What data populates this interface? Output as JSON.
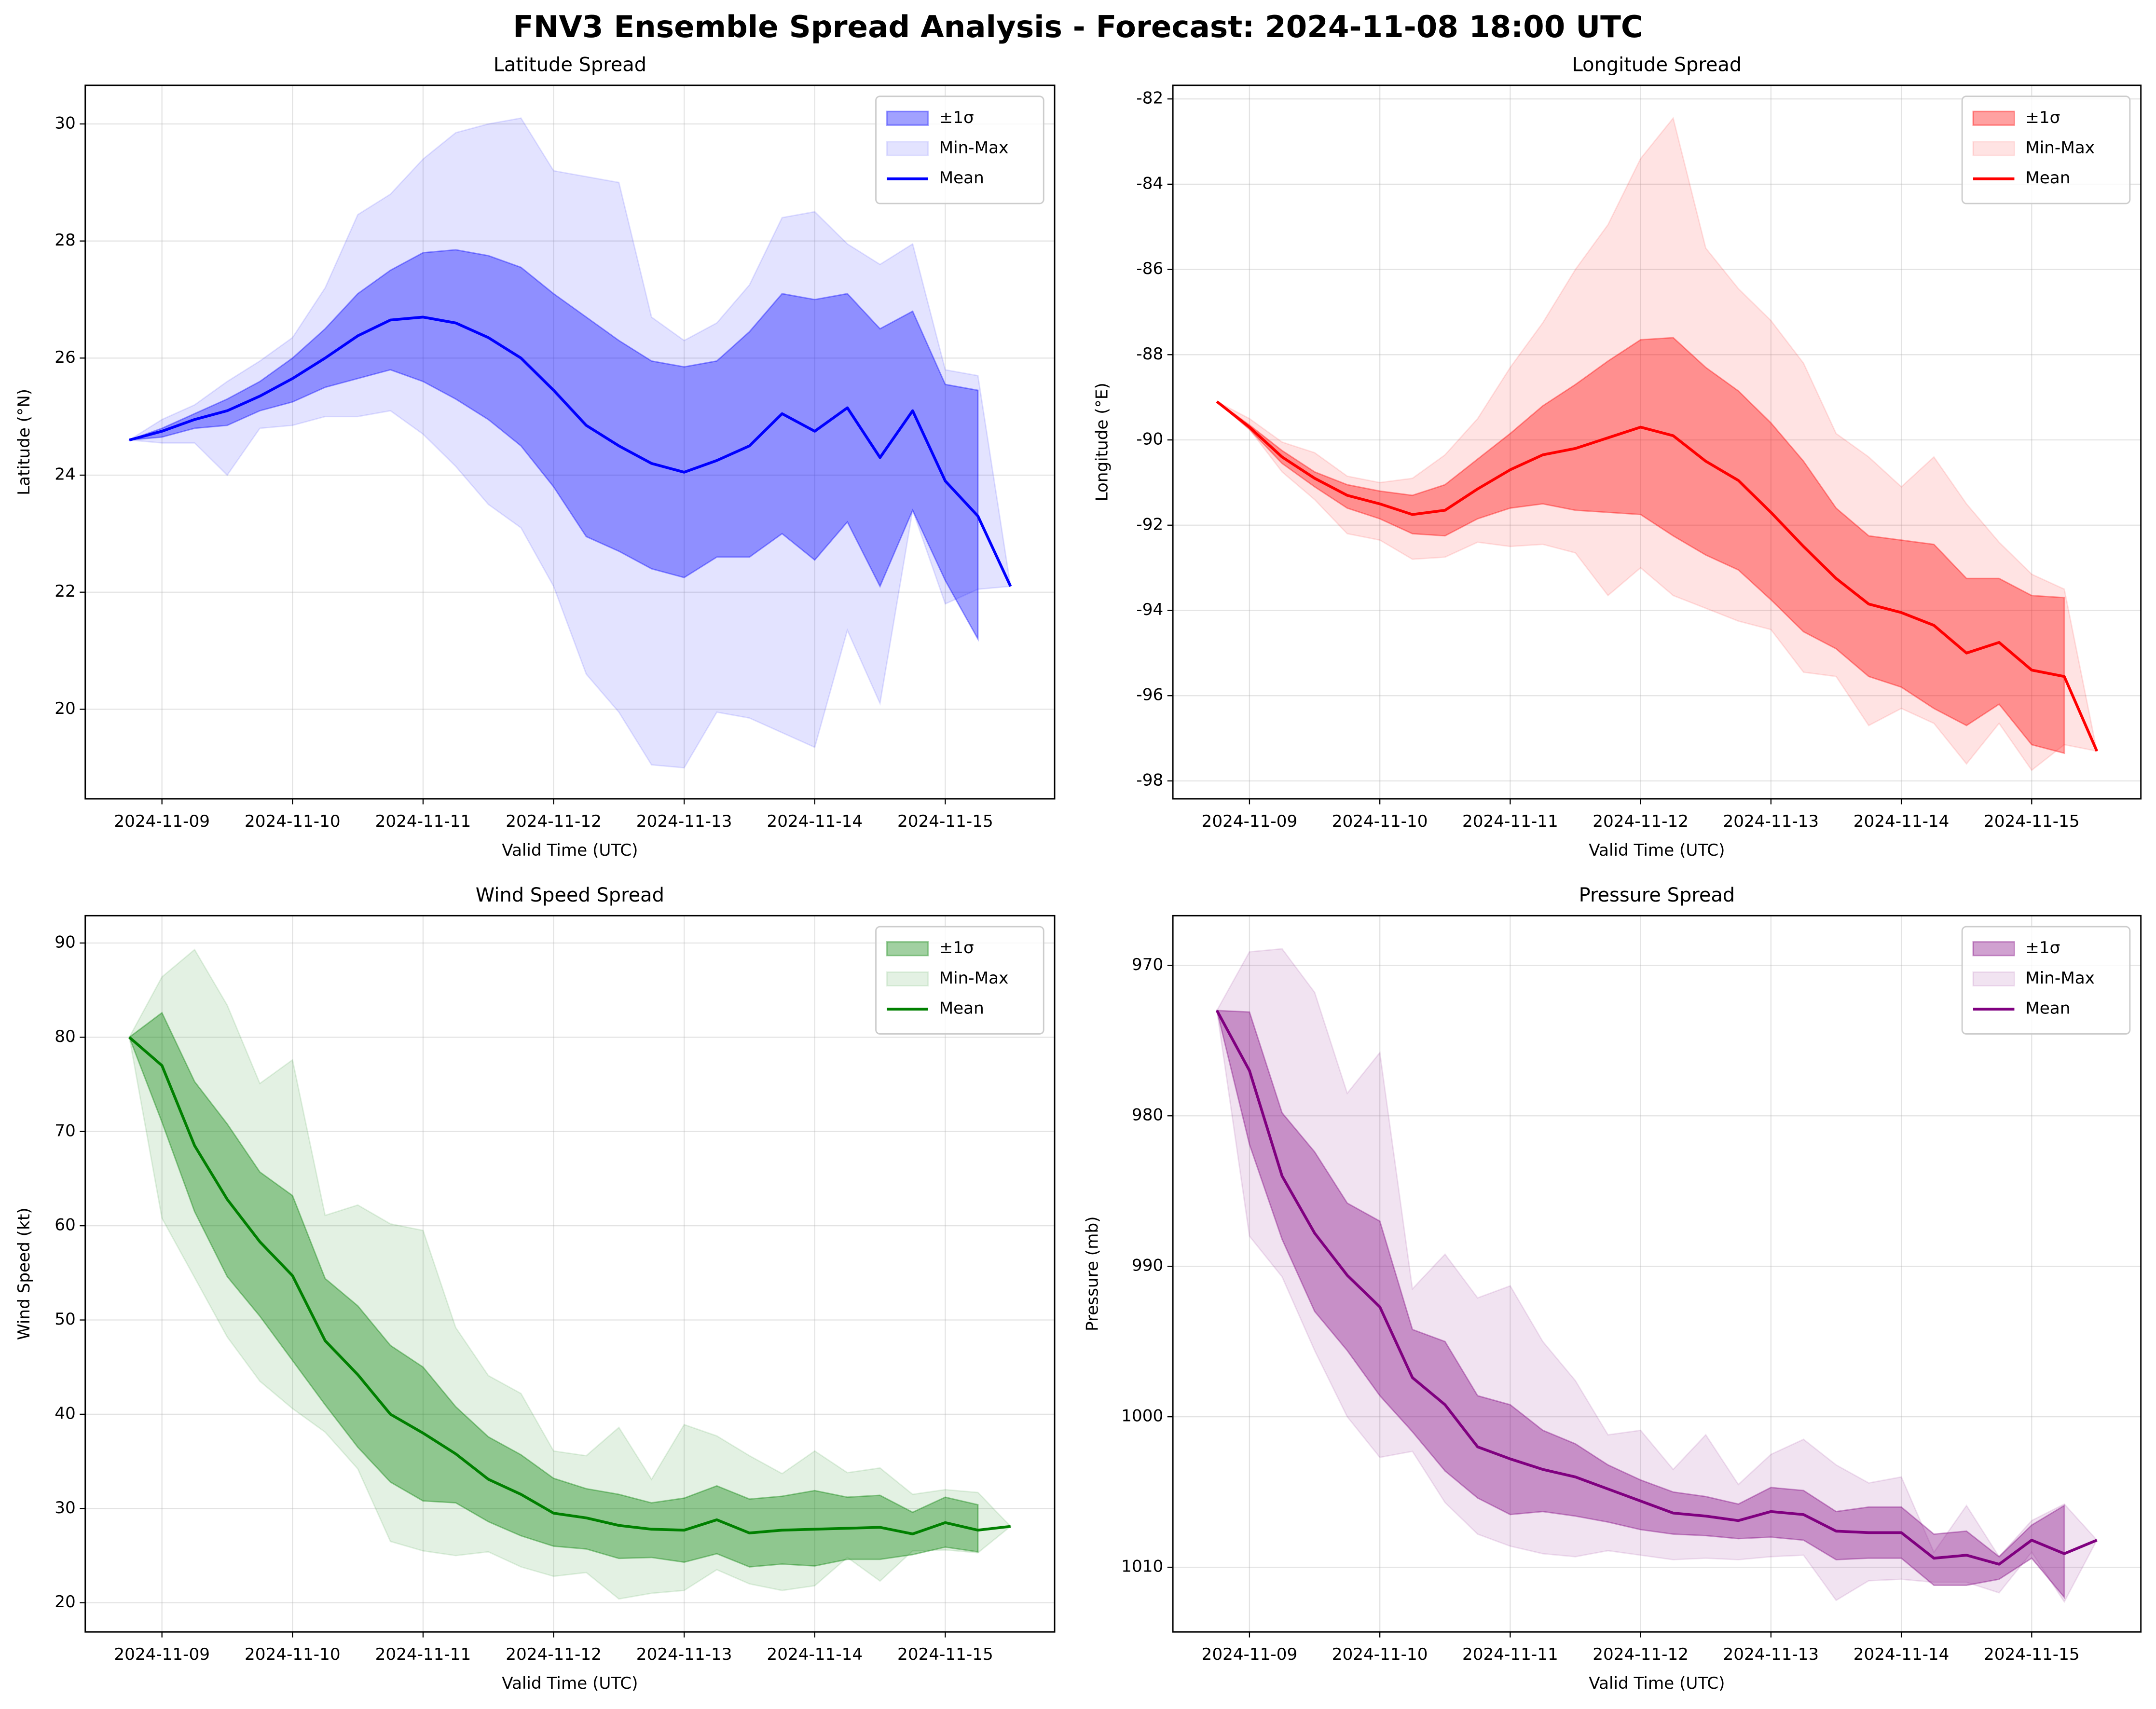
{
  "title": "FNV3 Ensemble Spread Analysis - Forecast: 2024-11-08 18:00 UTC",
  "chart_data": [
    {
      "type": "line",
      "title": "Latitude Spread",
      "xlabel": "Valid Time (UTC)",
      "ylabel": "Latitude (°N)",
      "x": [
        "2024-11-08T18:00",
        "2024-11-09T00:00",
        "2024-11-09T06:00",
        "2024-11-09T12:00",
        "2024-11-09T18:00",
        "2024-11-10T00:00",
        "2024-11-10T06:00",
        "2024-11-10T12:00",
        "2024-11-10T18:00",
        "2024-11-11T00:00",
        "2024-11-11T06:00",
        "2024-11-11T12:00",
        "2024-11-11T18:00",
        "2024-11-12T00:00",
        "2024-11-12T06:00",
        "2024-11-12T12:00",
        "2024-11-12T18:00",
        "2024-11-13T00:00",
        "2024-11-13T06:00",
        "2024-11-13T12:00",
        "2024-11-13T18:00",
        "2024-11-14T00:00",
        "2024-11-14T06:00",
        "2024-11-14T12:00",
        "2024-11-14T18:00",
        "2024-11-15T00:00",
        "2024-11-15T06:00",
        "2024-11-15T12:00"
      ],
      "series": [
        {
          "name": "±1σ",
          "color": "#0000ff5e",
          "lower": [
            24.6,
            24.65,
            24.8,
            24.85,
            25.1,
            25.25,
            25.5,
            25.65,
            25.8,
            25.6,
            25.3,
            24.95,
            24.5,
            23.8,
            22.95,
            22.7,
            22.4,
            22.25,
            22.6,
            22.6,
            23.0,
            22.55,
            23.2,
            22.1,
            23.4,
            22.2,
            21.2,
            null
          ],
          "upper": [
            24.6,
            24.8,
            25.05,
            25.3,
            25.6,
            26.0,
            26.5,
            27.1,
            27.5,
            27.8,
            27.85,
            27.75,
            27.55,
            27.1,
            26.7,
            26.3,
            25.95,
            25.85,
            25.95,
            26.45,
            27.1,
            27.0,
            27.1,
            26.5,
            26.8,
            25.55,
            25.45,
            null
          ]
        },
        {
          "name": "Min-Max",
          "color": "#0000ff1c",
          "lower": [
            24.6,
            24.55,
            24.55,
            24.0,
            24.8,
            24.85,
            25.0,
            25.0,
            25.1,
            24.7,
            24.15,
            23.5,
            23.1,
            22.1,
            20.6,
            19.95,
            19.05,
            19.0,
            19.95,
            19.85,
            19.6,
            19.35,
            21.35,
            20.1,
            23.4,
            21.8,
            22.05,
            22.1
          ],
          "upper": [
            24.6,
            24.95,
            25.2,
            25.6,
            25.95,
            26.35,
            27.2,
            28.45,
            28.8,
            29.4,
            29.85,
            30.0,
            30.1,
            29.2,
            29.1,
            29.0,
            26.7,
            26.3,
            26.6,
            27.25,
            28.4,
            28.5,
            27.95,
            27.6,
            27.95,
            25.8,
            25.7,
            22.1
          ]
        },
        {
          "name": "Mean",
          "color": "#0000ff",
          "values": [
            24.6,
            24.75,
            24.95,
            25.1,
            25.35,
            25.65,
            26.0,
            26.38,
            26.65,
            26.7,
            26.6,
            26.35,
            26.0,
            25.45,
            24.85,
            24.5,
            24.2,
            24.05,
            24.25,
            24.5,
            25.05,
            24.75,
            25.15,
            24.3,
            25.1,
            23.9,
            23.3,
            22.1
          ]
        }
      ],
      "xlim": [
        "2024-11-08T09:54",
        "2024-11-15T20:06"
      ],
      "xticks": [
        {
          "value": "2024-11-09T00:00",
          "label": "2024-11-09"
        },
        {
          "value": "2024-11-10T00:00",
          "label": "2024-11-10"
        },
        {
          "value": "2024-11-11T00:00",
          "label": "2024-11-11"
        },
        {
          "value": "2024-11-12T00:00",
          "label": "2024-11-12"
        },
        {
          "value": "2024-11-13T00:00",
          "label": "2024-11-13"
        },
        {
          "value": "2024-11-14T00:00",
          "label": "2024-11-14"
        },
        {
          "value": "2024-11-15T00:00",
          "label": "2024-11-15"
        }
      ],
      "ylim": [
        18.47,
        30.66
      ],
      "yticks": [
        20,
        22,
        24,
        26,
        28,
        30
      ],
      "grid": true,
      "legend": "upper right"
    },
    {
      "type": "line",
      "title": "Longitude Spread",
      "xlabel": "Valid Time (UTC)",
      "ylabel": "Longitude (°E)",
      "x": [
        "2024-11-08T18:00",
        "2024-11-09T00:00",
        "2024-11-09T06:00",
        "2024-11-09T12:00",
        "2024-11-09T18:00",
        "2024-11-10T00:00",
        "2024-11-10T06:00",
        "2024-11-10T12:00",
        "2024-11-10T18:00",
        "2024-11-11T00:00",
        "2024-11-11T06:00",
        "2024-11-11T12:00",
        "2024-11-11T18:00",
        "2024-11-12T00:00",
        "2024-11-12T06:00",
        "2024-11-12T12:00",
        "2024-11-12T18:00",
        "2024-11-13T00:00",
        "2024-11-13T06:00",
        "2024-11-13T12:00",
        "2024-11-13T18:00",
        "2024-11-14T00:00",
        "2024-11-14T06:00",
        "2024-11-14T12:00",
        "2024-11-14T18:00",
        "2024-11-15T00:00",
        "2024-11-15T06:00",
        "2024-11-15T12:00"
      ],
      "series": [
        {
          "name": "±1σ",
          "color": "#ff00005e",
          "lower": [
            -89.1,
            -89.75,
            -90.55,
            -91.1,
            -91.6,
            -91.85,
            -92.2,
            -92.25,
            -91.85,
            -91.6,
            -91.5,
            -91.65,
            -91.7,
            -91.75,
            -92.25,
            -92.7,
            -93.05,
            -93.75,
            -94.5,
            -94.9,
            -95.55,
            -95.8,
            -96.3,
            -96.7,
            -96.2,
            -97.15,
            -97.35,
            null
          ],
          "upper": [
            -89.1,
            -89.65,
            -90.25,
            -90.75,
            -91.05,
            -91.2,
            -91.3,
            -91.05,
            -90.45,
            -89.85,
            -89.2,
            -88.7,
            -88.15,
            -87.65,
            -87.6,
            -88.3,
            -88.85,
            -89.6,
            -90.5,
            -91.6,
            -92.25,
            -92.35,
            -92.45,
            -93.25,
            -93.25,
            -93.65,
            -93.7,
            null
          ]
        },
        {
          "name": "Min-Max",
          "color": "#ff00001c",
          "lower": [
            -89.1,
            -89.75,
            -90.75,
            -91.4,
            -92.2,
            -92.35,
            -92.8,
            -92.75,
            -92.4,
            -92.5,
            -92.45,
            -92.65,
            -93.65,
            -93.0,
            -93.65,
            -93.95,
            -94.25,
            -94.45,
            -95.45,
            -95.55,
            -96.7,
            -96.3,
            -96.65,
            -97.6,
            -96.65,
            -97.75,
            -97.15,
            -97.3
          ],
          "upper": [
            -89.1,
            -89.5,
            -90.05,
            -90.3,
            -90.85,
            -91.0,
            -90.9,
            -90.35,
            -89.5,
            -88.3,
            -87.25,
            -86.0,
            -84.95,
            -83.4,
            -82.45,
            -85.5,
            -86.45,
            -87.2,
            -88.2,
            -89.85,
            -90.4,
            -91.1,
            -90.4,
            -91.5,
            -92.4,
            -93.15,
            -93.5,
            -97.3
          ]
        },
        {
          "name": "Mean",
          "color": "#ff0000",
          "values": [
            -89.1,
            -89.7,
            -90.4,
            -90.9,
            -91.3,
            -91.5,
            -91.75,
            -91.65,
            -91.15,
            -90.7,
            -90.35,
            -90.2,
            -89.95,
            -89.7,
            -89.9,
            -90.5,
            -90.95,
            -91.7,
            -92.5,
            -93.25,
            -93.85,
            -94.05,
            -94.35,
            -95.0,
            -94.75,
            -95.4,
            -95.55,
            -97.3
          ]
        }
      ],
      "xlim": [
        "2024-11-08T09:54",
        "2024-11-15T20:06"
      ],
      "xticks": [
        {
          "value": "2024-11-09T00:00",
          "label": "2024-11-09"
        },
        {
          "value": "2024-11-10T00:00",
          "label": "2024-11-10"
        },
        {
          "value": "2024-11-11T00:00",
          "label": "2024-11-11"
        },
        {
          "value": "2024-11-12T00:00",
          "label": "2024-11-12"
        },
        {
          "value": "2024-11-13T00:00",
          "label": "2024-11-13"
        },
        {
          "value": "2024-11-14T00:00",
          "label": "2024-11-14"
        },
        {
          "value": "2024-11-15T00:00",
          "label": "2024-11-15"
        }
      ],
      "ylim": [
        -98.42,
        -81.68
      ],
      "yticks": [
        -98,
        -96,
        -94,
        -92,
        -90,
        -88,
        -86,
        -84,
        -82
      ],
      "grid": true,
      "legend": "upper right"
    },
    {
      "type": "line",
      "title": "Wind Speed Spread",
      "xlabel": "Valid Time (UTC)",
      "ylabel": "Wind Speed (kt)",
      "x": [
        "2024-11-08T18:00",
        "2024-11-09T00:00",
        "2024-11-09T06:00",
        "2024-11-09T12:00",
        "2024-11-09T18:00",
        "2024-11-10T00:00",
        "2024-11-10T06:00",
        "2024-11-10T12:00",
        "2024-11-10T18:00",
        "2024-11-11T00:00",
        "2024-11-11T06:00",
        "2024-11-11T12:00",
        "2024-11-11T18:00",
        "2024-11-12T00:00",
        "2024-11-12T06:00",
        "2024-11-12T12:00",
        "2024-11-12T18:00",
        "2024-11-13T00:00",
        "2024-11-13T06:00",
        "2024-11-13T12:00",
        "2024-11-13T18:00",
        "2024-11-14T00:00",
        "2024-11-14T06:00",
        "2024-11-14T12:00",
        "2024-11-14T18:00",
        "2024-11-15T00:00",
        "2024-11-15T06:00",
        "2024-11-15T12:00"
      ],
      "series": [
        {
          "name": "±1σ",
          "color": "#0080005e",
          "lower": [
            80,
            71,
            61.5,
            54.6,
            50.4,
            45.7,
            41,
            36.5,
            32.8,
            30.8,
            30.6,
            28.6,
            27.1,
            26,
            25.7,
            24.7,
            24.8,
            24.3,
            25.2,
            23.8,
            24.1,
            23.9,
            24.6,
            24.6,
            25.1,
            25.9,
            25.4,
            null
          ],
          "upper": [
            80,
            82.6,
            75.3,
            70.8,
            65.7,
            63.2,
            54.4,
            51.5,
            47.3,
            45,
            40.8,
            37.6,
            35.7,
            33.2,
            32.1,
            31.5,
            30.6,
            31.1,
            32.4,
            31,
            31.3,
            31.9,
            31.2,
            31.4,
            29.6,
            31.2,
            30.4,
            null
          ]
        },
        {
          "name": "Min-Max",
          "color": "#0080001c",
          "lower": [
            80,
            60.8,
            54.5,
            48.2,
            43.5,
            40.6,
            38.1,
            34.2,
            26.5,
            25.5,
            25,
            25.4,
            23.8,
            22.8,
            23.2,
            20.4,
            21,
            21.3,
            23.5,
            22,
            21.3,
            21.8,
            24.8,
            22.3,
            25.5,
            25.6,
            25.3,
            28.1
          ],
          "upper": [
            80,
            86.4,
            89.3,
            83.4,
            75.1,
            77.6,
            61.1,
            62.2,
            60.2,
            59.5,
            49.2,
            44.1,
            42.2,
            36.1,
            35.6,
            38.6,
            33.1,
            38.9,
            37.7,
            35.6,
            33.7,
            36.1,
            33.8,
            34.3,
            31.5,
            32,
            31.7,
            28.1
          ]
        },
        {
          "name": "Mean",
          "color": "#008000",
          "values": [
            80,
            77,
            68.5,
            62.8,
            58.3,
            54.7,
            47.8,
            44.2,
            40,
            38,
            35.8,
            33.1,
            31.5,
            29.5,
            29,
            28.2,
            27.8,
            27.7,
            28.8,
            27.4,
            27.7,
            27.8,
            27.9,
            28,
            27.3,
            28.5,
            27.7,
            28.1
          ]
        }
      ],
      "xlim": [
        "2024-11-08T09:54",
        "2024-11-15T20:06"
      ],
      "xticks": [
        {
          "value": "2024-11-09T00:00",
          "label": "2024-11-09"
        },
        {
          "value": "2024-11-10T00:00",
          "label": "2024-11-10"
        },
        {
          "value": "2024-11-11T00:00",
          "label": "2024-11-11"
        },
        {
          "value": "2024-11-12T00:00",
          "label": "2024-11-12"
        },
        {
          "value": "2024-11-13T00:00",
          "label": "2024-11-13"
        },
        {
          "value": "2024-11-14T00:00",
          "label": "2024-11-14"
        },
        {
          "value": "2024-11-15T00:00",
          "label": "2024-11-15"
        }
      ],
      "ylim": [
        16.9,
        92.9
      ],
      "yticks": [
        20,
        30,
        40,
        50,
        60,
        70,
        80,
        90
      ],
      "grid": true,
      "legend": "upper right"
    },
    {
      "type": "line",
      "title": "Pressure Spread",
      "xlabel": "Valid Time (UTC)",
      "ylabel": "Pressure (mb)",
      "x": [
        "2024-11-08T18:00",
        "2024-11-09T00:00",
        "2024-11-09T06:00",
        "2024-11-09T12:00",
        "2024-11-09T18:00",
        "2024-11-10T00:00",
        "2024-11-10T06:00",
        "2024-11-10T12:00",
        "2024-11-10T18:00",
        "2024-11-11T00:00",
        "2024-11-11T06:00",
        "2024-11-11T12:00",
        "2024-11-11T18:00",
        "2024-11-12T00:00",
        "2024-11-12T06:00",
        "2024-11-12T12:00",
        "2024-11-12T18:00",
        "2024-11-13T00:00",
        "2024-11-13T06:00",
        "2024-11-13T12:00",
        "2024-11-13T18:00",
        "2024-11-14T00:00",
        "2024-11-14T06:00",
        "2024-11-14T12:00",
        "2024-11-14T18:00",
        "2024-11-15T00:00",
        "2024-11-15T06:00",
        "2024-11-15T12:00"
      ],
      "series": [
        {
          "name": "±1σ",
          "color": "#8000805e",
          "lower": [
            973,
            973.1,
            979.8,
            982.4,
            985.8,
            987,
            994.2,
            995,
            998.6,
            999.2,
            1000.9,
            1001.8,
            1003.2,
            1004.2,
            1005,
            1005.3,
            1005.8,
            1004.7,
            1004.9,
            1006.3,
            1006,
            1006,
            1007.8,
            1007.6,
            1009.3,
            1007.2,
            1005.9,
            null
          ],
          "upper": [
            973,
            981.9,
            988.2,
            993,
            995.6,
            998.6,
            1001,
            1003.6,
            1005.4,
            1006.5,
            1006.3,
            1006.6,
            1007,
            1007.5,
            1007.8,
            1007.9,
            1008.1,
            1008,
            1008.2,
            1009.5,
            1009.4,
            1009.4,
            1011.2,
            1011.2,
            1010.8,
            1009.4,
            1012,
            null
          ]
        },
        {
          "name": "Min-Max",
          "color": "#8000801c",
          "lower": [
            973,
            969.1,
            968.9,
            971.8,
            978.5,
            975.8,
            991.5,
            989.2,
            992.1,
            991.3,
            995,
            997.6,
            1001.2,
            1000.9,
            1003.5,
            1001.2,
            1004.5,
            1002.5,
            1001.5,
            1003.2,
            1004.4,
            1004,
            1009,
            1005.9,
            1009.3,
            1006.9,
            1005.8,
            1008.2
          ],
          "upper": [
            973,
            988,
            990.7,
            995.6,
            1000,
            1002.7,
            1002.3,
            1005.7,
            1007.8,
            1008.6,
            1009.1,
            1009.3,
            1008.9,
            1009.2,
            1009.5,
            1009.4,
            1009.5,
            1009.3,
            1009.2,
            1012.2,
            1010.9,
            1010.8,
            1011,
            1011,
            1011.7,
            1009,
            1012.3,
            1008.2
          ]
        },
        {
          "name": "Mean",
          "color": "#800080",
          "values": [
            973,
            977,
            984,
            987.8,
            990.6,
            992.7,
            997.4,
            999.2,
            1002,
            1002.8,
            1003.5,
            1004,
            1004.8,
            1005.6,
            1006.4,
            1006.6,
            1006.9,
            1006.3,
            1006.5,
            1007.6,
            1007.7,
            1007.7,
            1009.4,
            1009.2,
            1009.8,
            1008.2,
            1009.1,
            1008.2
          ]
        }
      ],
      "xlim": [
        "2024-11-08T09:54",
        "2024-11-15T20:06"
      ],
      "xticks": [
        {
          "value": "2024-11-09T00:00",
          "label": "2024-11-09"
        },
        {
          "value": "2024-11-10T00:00",
          "label": "2024-11-10"
        },
        {
          "value": "2024-11-11T00:00",
          "label": "2024-11-11"
        },
        {
          "value": "2024-11-12T00:00",
          "label": "2024-11-12"
        },
        {
          "value": "2024-11-13T00:00",
          "label": "2024-11-13"
        },
        {
          "value": "2024-11-14T00:00",
          "label": "2024-11-14"
        },
        {
          "value": "2024-11-15T00:00",
          "label": "2024-11-15"
        }
      ],
      "ylim": [
        1014.3,
        966.7
      ],
      "yticks": [
        970,
        980,
        990,
        1000,
        1010
      ],
      "grid": true,
      "legend": "upper right"
    }
  ]
}
